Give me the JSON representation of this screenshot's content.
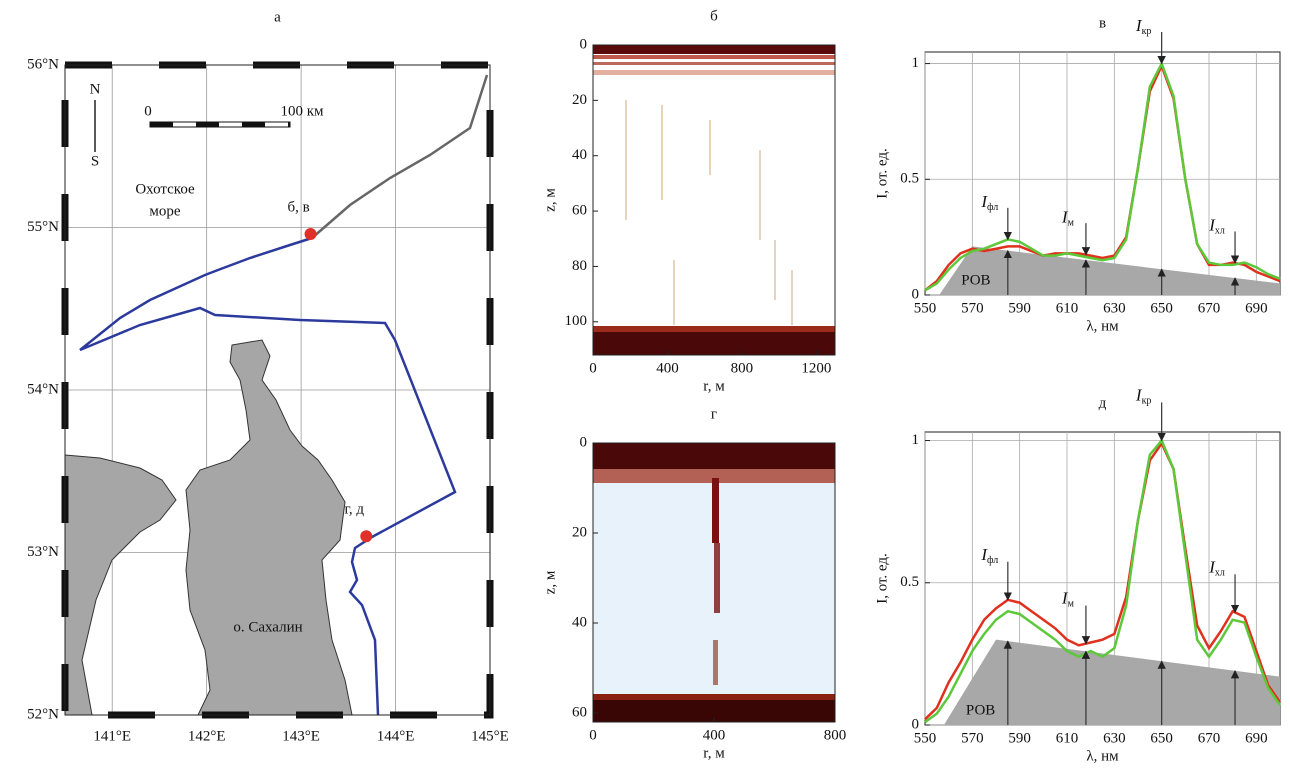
{
  "chart_data": [
    {
      "type": "map",
      "title": "а",
      "xlim": [
        140.5,
        145
      ],
      "ylim": [
        52,
        56
      ],
      "xticks": [
        {
          "value": 141,
          "label": "141°E"
        },
        {
          "value": 142,
          "label": "142°E"
        },
        {
          "value": 143,
          "label": "143°E"
        },
        {
          "value": 144,
          "label": "144°E"
        },
        {
          "value": 145,
          "label": "145°E"
        }
      ],
      "yticks": [
        {
          "value": 52,
          "label": "52°N"
        },
        {
          "value": 53,
          "label": "53°N"
        },
        {
          "value": 54,
          "label": "54°N"
        },
        {
          "value": 55,
          "label": "55°N"
        },
        {
          "value": 56,
          "label": "56°N"
        }
      ],
      "grid": true,
      "stations": [
        {
          "label": "б, в",
          "lon": 143.1,
          "lat": 54.96
        },
        {
          "label": "г, д",
          "lon": 143.69,
          "lat": 53.1
        }
      ],
      "station_color": "#e0302a",
      "labels": {
        "sea": [
          "Охотское",
          "море"
        ],
        "island": "о. Сахалин",
        "north": "N",
        "south": "S",
        "scale_start": "0",
        "scale_end": "100 км"
      }
    },
    {
      "type": "heatmap",
      "title": "б",
      "x_label": "r, м",
      "y_label": "z, м",
      "xlim": [
        0,
        1300
      ],
      "ylim": [
        0,
        112
      ],
      "y_inverted": true,
      "xticks": [
        0,
        400,
        800,
        1200
      ],
      "yticks": [
        0,
        20,
        40,
        60,
        80,
        100
      ]
    },
    {
      "type": "heatmap",
      "title": "г",
      "x_label": "r, м",
      "y_label": "z, м",
      "xlim": [
        0,
        800
      ],
      "ylim": [
        0,
        62
      ],
      "y_inverted": true,
      "xticks": [
        0,
        400,
        800
      ],
      "yticks": [
        0,
        20,
        40,
        60
      ]
    },
    {
      "type": "line",
      "title": "в",
      "x_label": "λ, нм",
      "y_label": "I, от. ед.",
      "xlim": [
        550,
        700
      ],
      "ylim": [
        0,
        1.05
      ],
      "grid": true,
      "xticks": [
        550,
        570,
        590,
        610,
        630,
        650,
        670,
        690
      ],
      "yticks": [
        0,
        0.5,
        1
      ],
      "x": [
        550,
        555,
        560,
        565,
        570,
        575,
        580,
        585,
        590,
        595,
        600,
        605,
        610,
        615,
        620,
        625,
        630,
        635,
        640,
        645,
        650,
        655,
        660,
        665,
        670,
        675,
        680,
        685,
        690,
        695,
        700
      ],
      "series": [
        {
          "color": "#e0301e",
          "values": [
            0.02,
            0.06,
            0.13,
            0.18,
            0.2,
            0.19,
            0.2,
            0.21,
            0.21,
            0.19,
            0.17,
            0.18,
            0.18,
            0.18,
            0.17,
            0.16,
            0.17,
            0.25,
            0.55,
            0.88,
            0.99,
            0.85,
            0.5,
            0.22,
            0.13,
            0.13,
            0.14,
            0.13,
            0.1,
            0.08,
            0.06
          ]
        },
        {
          "color": "#5cc83a",
          "values": [
            0.02,
            0.05,
            0.11,
            0.16,
            0.19,
            0.2,
            0.22,
            0.24,
            0.23,
            0.2,
            0.17,
            0.17,
            0.18,
            0.17,
            0.16,
            0.15,
            0.16,
            0.24,
            0.55,
            0.9,
            1.0,
            0.86,
            0.5,
            0.22,
            0.14,
            0.13,
            0.13,
            0.14,
            0.12,
            0.09,
            0.07
          ]
        }
      ],
      "background": {
        "label": "РОВ",
        "color": "#a8a8a8",
        "x": [
          556,
          570,
          700
        ],
        "values": [
          0,
          0.21,
          0.05
        ]
      },
      "annotations": [
        {
          "symbol": "I",
          "subscript": "фл",
          "x": 585
        },
        {
          "symbol": "I",
          "subscript": "м",
          "x": 618
        },
        {
          "symbol": "I",
          "subscript": "кр",
          "x": 650
        },
        {
          "symbol": "I",
          "subscript": "хл",
          "x": 681
        }
      ]
    },
    {
      "type": "line",
      "title": "д",
      "x_label": "λ, нм",
      "y_label": "I, от. ед.",
      "xlim": [
        550,
        700
      ],
      "ylim": [
        0,
        1.03
      ],
      "grid": true,
      "xticks": [
        550,
        570,
        590,
        610,
        630,
        650,
        670,
        690
      ],
      "yticks": [
        0,
        0.5,
        1
      ],
      "x": [
        550,
        555,
        560,
        565,
        570,
        575,
        580,
        585,
        590,
        595,
        600,
        605,
        610,
        615,
        620,
        625,
        630,
        635,
        640,
        645,
        650,
        655,
        660,
        665,
        670,
        675,
        680,
        685,
        690,
        695,
        700
      ],
      "series": [
        {
          "color": "#e0301e",
          "values": [
            0.02,
            0.06,
            0.15,
            0.22,
            0.3,
            0.37,
            0.41,
            0.44,
            0.43,
            0.4,
            0.37,
            0.34,
            0.3,
            0.28,
            0.29,
            0.3,
            0.32,
            0.45,
            0.72,
            0.93,
            0.99,
            0.9,
            0.62,
            0.35,
            0.27,
            0.33,
            0.4,
            0.38,
            0.26,
            0.14,
            0.08
          ]
        },
        {
          "color": "#5cc83a",
          "values": [
            0.01,
            0.04,
            0.1,
            0.18,
            0.26,
            0.32,
            0.37,
            0.4,
            0.39,
            0.36,
            0.33,
            0.3,
            0.26,
            0.24,
            0.26,
            0.24,
            0.27,
            0.42,
            0.72,
            0.95,
            1.0,
            0.9,
            0.6,
            0.3,
            0.24,
            0.3,
            0.37,
            0.36,
            0.24,
            0.13,
            0.07
          ]
        }
      ],
      "background": {
        "label": "РОВ",
        "color": "#a8a8a8",
        "x": [
          558,
          580,
          700
        ],
        "values": [
          0,
          0.3,
          0.17
        ]
      },
      "annotations": [
        {
          "symbol": "I",
          "subscript": "фл",
          "x": 585
        },
        {
          "symbol": "I",
          "subscript": "м",
          "x": 618
        },
        {
          "symbol": "I",
          "subscript": "кр",
          "x": 650
        },
        {
          "symbol": "I",
          "subscript": "хл",
          "x": 681
        }
      ]
    }
  ]
}
